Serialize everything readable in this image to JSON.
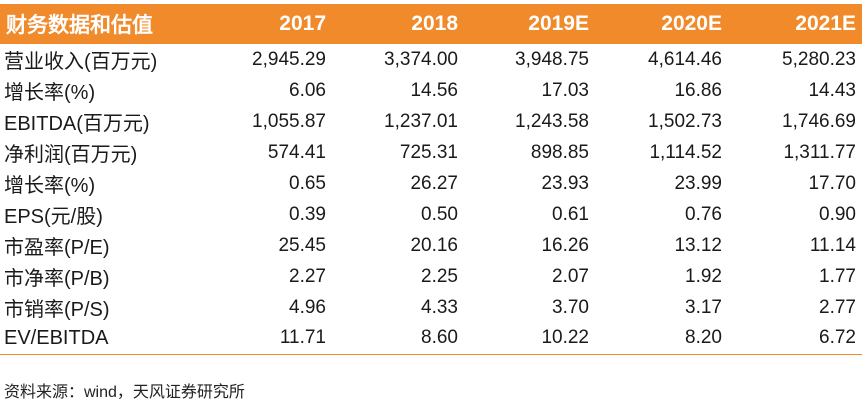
{
  "table": {
    "header_label": "财务数据和估值",
    "columns": [
      "2017",
      "2018",
      "2019E",
      "2020E",
      "2021E"
    ],
    "rows": [
      {
        "label": "营业收入(百万元)",
        "values": [
          "2,945.29",
          "3,374.00",
          "3,948.75",
          "4,614.46",
          "5,280.23"
        ]
      },
      {
        "label": "增长率(%)",
        "values": [
          "6.06",
          "14.56",
          "17.03",
          "16.86",
          "14.43"
        ]
      },
      {
        "label": "EBITDA(百万元)",
        "values": [
          "1,055.87",
          "1,237.01",
          "1,243.58",
          "1,502.73",
          "1,746.69"
        ]
      },
      {
        "label": "净利润(百万元)",
        "values": [
          "574.41",
          "725.31",
          "898.85",
          "1,114.52",
          "1,311.77"
        ]
      },
      {
        "label": "增长率(%)",
        "values": [
          "0.65",
          "26.27",
          "23.93",
          "23.99",
          "17.70"
        ]
      },
      {
        "label": "EPS(元/股)",
        "values": [
          "0.39",
          "0.50",
          "0.61",
          "0.76",
          "0.90"
        ]
      },
      {
        "label": "市盈率(P/E)",
        "values": [
          "25.45",
          "20.16",
          "16.26",
          "13.12",
          "11.14"
        ]
      },
      {
        "label": "市净率(P/B)",
        "values": [
          "2.27",
          "2.25",
          "2.07",
          "1.92",
          "1.77"
        ]
      },
      {
        "label": "市销率(P/S)",
        "values": [
          "4.96",
          "4.33",
          "3.70",
          "3.17",
          "2.77"
        ]
      },
      {
        "label": "EV/EBITDA",
        "values": [
          "11.71",
          "8.60",
          "10.22",
          "8.20",
          "6.72"
        ]
      }
    ]
  },
  "source": "资料来源：wind，天风证券研究所",
  "colors": {
    "header_bg": "#f08a2a",
    "header_text": "#ffffff",
    "rule": "#f08a2a"
  }
}
